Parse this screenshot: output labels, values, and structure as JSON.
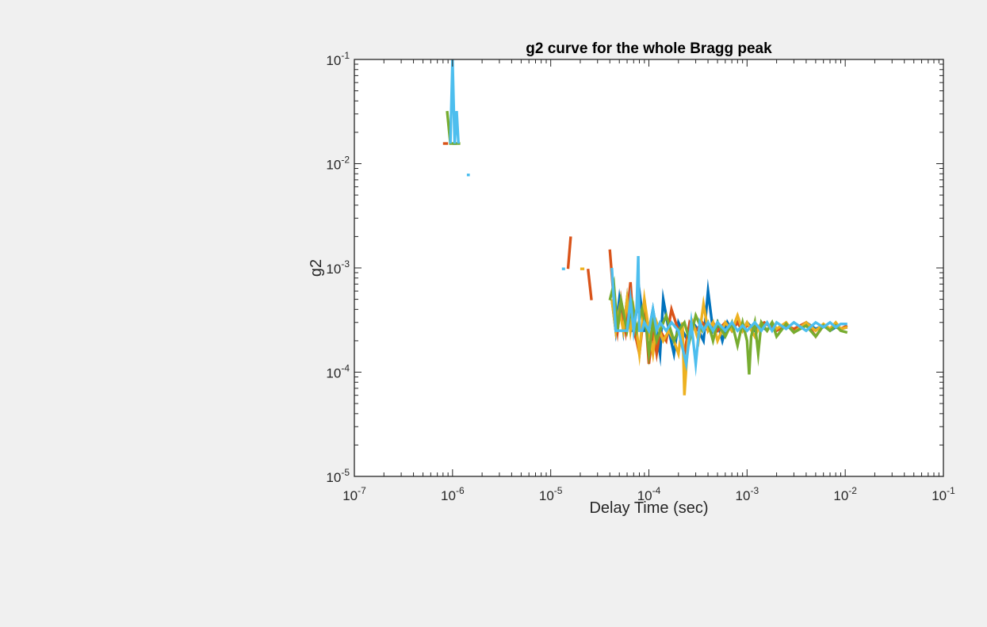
{
  "chart_data": {
    "type": "line",
    "title": "g2 curve for the whole Bragg peak",
    "xlabel": "Delay Time (sec)",
    "ylabel": "g2",
    "xscale": "log",
    "yscale": "log",
    "xlim": [
      1e-07,
      0.1
    ],
    "ylim": [
      1e-05,
      0.1
    ],
    "x_ticks": [
      {
        "base": "10",
        "exp": "-7"
      },
      {
        "base": "10",
        "exp": "-6"
      },
      {
        "base": "10",
        "exp": "-5"
      },
      {
        "base": "10",
        "exp": "-4"
      },
      {
        "base": "10",
        "exp": "-3"
      },
      {
        "base": "10",
        "exp": "-2"
      },
      {
        "base": "10",
        "exp": "-1"
      }
    ],
    "y_ticks": [
      {
        "base": "10",
        "exp": "-5"
      },
      {
        "base": "10",
        "exp": "-4"
      },
      {
        "base": "10",
        "exp": "-3"
      },
      {
        "base": "10",
        "exp": "-2"
      },
      {
        "base": "10",
        "exp": "-1"
      }
    ],
    "grid": false,
    "legend": "none",
    "series": [
      {
        "color": "#0072BD",
        "points": [
          [
            1e-06,
            0.0156
          ],
          [
            1.1e-06,
            0.0156
          ],
          null,
          [
            4.2e-05,
            0.0005
          ],
          [
            4.6e-05,
            0.00025
          ],
          [
            5e-05,
            0.0005
          ],
          [
            5.5e-05,
            0.00025
          ],
          [
            6e-05,
            0.0005
          ],
          [
            6.5e-05,
            0.00025
          ],
          [
            7e-05,
            0.00025
          ],
          [
            8e-05,
            0.0006
          ],
          [
            9e-05,
            0.00025
          ],
          [
            0.0001,
            0.00025
          ],
          [
            0.00011,
            0.0004
          ],
          [
            0.00012,
            0.00025
          ],
          [
            0.00013,
            0.00015
          ],
          [
            0.00014,
            0.0005
          ],
          [
            0.00016,
            0.00025
          ],
          [
            0.00018,
            0.00015
          ],
          [
            0.0002,
            0.0003
          ],
          [
            0.00022,
            0.00025
          ],
          [
            0.00025,
            0.0002
          ],
          [
            0.00028,
            0.0003
          ],
          [
            0.00032,
            0.00025
          ],
          [
            0.00036,
            0.0002
          ],
          [
            0.0004,
            0.0006
          ],
          [
            0.00045,
            0.00025
          ],
          [
            0.0005,
            0.0003
          ],
          [
            0.00056,
            0.0002
          ],
          [
            0.00063,
            0.0003
          ],
          [
            0.0007,
            0.00025
          ],
          [
            0.0008,
            0.0003
          ],
          [
            0.0009,
            0.00025
          ],
          [
            0.001,
            0.0003
          ],
          [
            0.0012,
            0.00025
          ],
          [
            0.0014,
            0.00028
          ],
          [
            0.0016,
            0.00025
          ],
          [
            0.0018,
            0.0003
          ],
          [
            0.002,
            0.00026
          ],
          [
            0.0025,
            0.00028
          ],
          [
            0.003,
            0.00025
          ],
          [
            0.004,
            0.0003
          ],
          [
            0.005,
            0.00026
          ],
          [
            0.006,
            0.00028
          ],
          [
            0.007,
            0.00025
          ],
          [
            0.008,
            0.00027
          ],
          [
            0.009,
            0.00026
          ],
          [
            0.0105,
            0.00027
          ]
        ]
      },
      {
        "color": "#D95319",
        "points": [
          [
            8e-07,
            0.0156
          ],
          [
            9e-07,
            0.0156
          ],
          null,
          [
            1.5e-05,
            0.00098
          ],
          [
            1.6e-05,
            0.002
          ],
          null,
          [
            2.4e-05,
            0.00098
          ],
          [
            2.6e-05,
            0.00049
          ],
          null,
          [
            4e-05,
            0.0015
          ],
          [
            4.4e-05,
            0.00049
          ],
          [
            4.8e-05,
            0.00025
          ],
          [
            5.2e-05,
            0.00049
          ],
          [
            5.8e-05,
            0.00025
          ],
          [
            6.5e-05,
            0.00073
          ],
          [
            7e-05,
            0.00025
          ],
          [
            7.5e-05,
            0.0002
          ],
          [
            8e-05,
            0.00015
          ],
          [
            8.5e-05,
            0.00025
          ],
          [
            9e-05,
            0.0005
          ],
          [
            0.0001,
            0.00012
          ],
          [
            0.00011,
            0.00025
          ],
          [
            0.00012,
            0.00015
          ],
          [
            0.00013,
            0.00025
          ],
          [
            0.00015,
            0.0002
          ],
          [
            0.00017,
            0.0004
          ],
          [
            0.0002,
            0.00025
          ],
          [
            0.00023,
            0.00015
          ],
          [
            0.00026,
            0.0003
          ],
          [
            0.0003,
            0.00025
          ],
          [
            0.00035,
            0.0003
          ],
          [
            0.0004,
            0.00025
          ],
          [
            0.00045,
            0.0003
          ],
          [
            0.0005,
            0.00025
          ],
          [
            0.0006,
            0.0003
          ],
          [
            0.0007,
            0.00025
          ],
          [
            0.0008,
            0.0003
          ],
          [
            0.0009,
            0.00025
          ],
          [
            0.001,
            0.00028
          ],
          [
            0.0012,
            0.00026
          ],
          [
            0.0015,
            0.0003
          ],
          [
            0.002,
            0.00025
          ],
          [
            0.0025,
            0.00028
          ],
          [
            0.003,
            0.00026
          ],
          [
            0.004,
            0.0003
          ],
          [
            0.005,
            0.00022
          ],
          [
            0.006,
            0.00028
          ],
          [
            0.007,
            0.00026
          ],
          [
            0.008,
            0.00029
          ],
          [
            0.009,
            0.00026
          ],
          [
            0.0105,
            0.00028
          ]
        ]
      },
      {
        "color": "#EDB120",
        "points": [
          [
            2e-05,
            0.00098
          ],
          [
            2.2e-05,
            0.00098
          ],
          null,
          [
            4.2e-05,
            0.0005
          ],
          [
            4.6e-05,
            0.00025
          ],
          [
            5e-05,
            0.0004
          ],
          [
            5.5e-05,
            0.00025
          ],
          [
            6e-05,
            0.0005
          ],
          [
            6.5e-05,
            0.00025
          ],
          [
            7e-05,
            0.0004
          ],
          [
            7.5e-05,
            0.00025
          ],
          [
            8e-05,
            0.00015
          ],
          [
            9e-05,
            0.0005
          ],
          [
            0.0001,
            0.00025
          ],
          [
            0.00011,
            0.00015
          ],
          [
            0.00012,
            0.0003
          ],
          [
            0.00014,
            0.0002
          ],
          [
            0.00016,
            0.00025
          ],
          [
            0.00018,
            0.0002
          ],
          [
            0.0002,
            0.00015
          ],
          [
            0.00022,
            0.0003
          ],
          [
            0.00023,
            6e-05
          ],
          [
            0.00025,
            0.0002
          ],
          [
            0.00028,
            0.0003
          ],
          [
            0.00032,
            0.0002
          ],
          [
            0.00036,
            0.00045
          ],
          [
            0.0004,
            0.00025
          ],
          [
            0.00045,
            0.0003
          ],
          [
            0.0005,
            0.0002
          ],
          [
            0.0006,
            0.0003
          ],
          [
            0.0007,
            0.00025
          ],
          [
            0.0008,
            0.00035
          ],
          [
            0.0009,
            0.00025
          ],
          [
            0.001,
            0.0003
          ],
          [
            0.0012,
            0.00022
          ],
          [
            0.0014,
            0.0003
          ],
          [
            0.0016,
            0.00025
          ],
          [
            0.0018,
            0.0003
          ],
          [
            0.002,
            0.00026
          ],
          [
            0.0025,
            0.0003
          ],
          [
            0.003,
            0.00024
          ],
          [
            0.004,
            0.0003
          ],
          [
            0.005,
            0.00025
          ],
          [
            0.006,
            0.00029
          ],
          [
            0.007,
            0.00026
          ],
          [
            0.008,
            0.0003
          ],
          [
            0.009,
            0.00026
          ],
          [
            0.0105,
            0.00027
          ]
        ]
      },
      {
        "color": "#77AC30",
        "points": [
          [
            8.8e-07,
            0.032
          ],
          [
            9.5e-07,
            0.0156
          ],
          [
            1.1e-06,
            0.0156
          ],
          [
            1.2e-06,
            0.0156
          ],
          null,
          [
            4e-05,
            0.00049
          ],
          [
            4.4e-05,
            0.0007
          ],
          [
            4.8e-05,
            0.00025
          ],
          [
            5.2e-05,
            0.00049
          ],
          [
            6e-05,
            0.00025
          ],
          [
            6.8e-05,
            0.00045
          ],
          [
            7.5e-05,
            0.00025
          ],
          [
            8.5e-05,
            0.0004
          ],
          [
            9.5e-05,
            0.00025
          ],
          [
            0.0001,
            0.00015
          ],
          [
            0.00011,
            0.0003
          ],
          [
            0.00012,
            0.0002
          ],
          [
            0.00013,
            0.00025
          ],
          [
            0.00015,
            0.00035
          ],
          [
            0.00018,
            0.0002
          ],
          [
            0.0002,
            0.00025
          ],
          [
            0.00023,
            0.0003
          ],
          [
            0.00026,
            0.0002
          ],
          [
            0.0003,
            0.00035
          ],
          [
            0.00035,
            0.00025
          ],
          [
            0.0004,
            0.0003
          ],
          [
            0.00045,
            0.0002
          ],
          [
            0.0005,
            0.0003
          ],
          [
            0.0006,
            0.00022
          ],
          [
            0.0007,
            0.0003
          ],
          [
            0.0008,
            0.00018
          ],
          [
            0.0009,
            0.0003
          ],
          [
            0.001,
            0.0002
          ],
          [
            0.00105,
            9.5e-05
          ],
          [
            0.0011,
            0.00022
          ],
          [
            0.0012,
            0.0003
          ],
          [
            0.0013,
            0.00015
          ],
          [
            0.0014,
            0.0003
          ],
          [
            0.0016,
            0.00025
          ],
          [
            0.0018,
            0.0003
          ],
          [
            0.002,
            0.00022
          ],
          [
            0.0025,
            0.00029
          ],
          [
            0.003,
            0.00024
          ],
          [
            0.004,
            0.00028
          ],
          [
            0.005,
            0.00022
          ],
          [
            0.006,
            0.00028
          ],
          [
            0.007,
            0.00025
          ],
          [
            0.008,
            0.00028
          ],
          [
            0.009,
            0.00025
          ],
          [
            0.0105,
            0.00024
          ]
        ]
      },
      {
        "color": "#4DBEEE",
        "points": [
          [
            9.5e-07,
            0.0156
          ],
          [
            1e-06,
            0.1
          ],
          [
            1.05e-06,
            0.0156
          ],
          [
            1.1e-06,
            0.032
          ],
          [
            1.15e-06,
            0.0156
          ],
          null,
          [
            1.4e-06,
            0.0078
          ],
          [
            1.5e-06,
            0.0078
          ],
          null,
          [
            1.3e-05,
            0.00098
          ],
          [
            1.4e-05,
            0.00098
          ],
          null,
          [
            4.2e-05,
            0.001
          ],
          [
            4.6e-05,
            0.00025
          ],
          [
            5e-05,
            0.00025
          ],
          [
            5.5e-05,
            0.00025
          ],
          [
            6e-05,
            0.00025
          ],
          [
            6.5e-05,
            0.0005
          ],
          [
            7e-05,
            0.00025
          ],
          [
            7.5e-05,
            0.0004
          ],
          [
            7.8e-05,
            0.0013
          ],
          [
            8e-05,
            0.00025
          ],
          [
            8.5e-05,
            0.00025
          ],
          [
            9e-05,
            0.0003
          ],
          [
            0.0001,
            0.00025
          ],
          [
            0.00011,
            0.0004
          ],
          [
            0.00012,
            0.00025
          ],
          [
            0.00013,
            0.0003
          ],
          [
            0.00015,
            0.00025
          ],
          [
            0.00017,
            0.0003
          ],
          [
            0.0002,
            0.00025
          ],
          [
            0.00024,
            0.00012
          ],
          [
            0.00027,
            0.0003
          ],
          [
            0.0003,
            0.00012
          ],
          [
            0.00033,
            0.0003
          ],
          [
            0.00036,
            0.00025
          ],
          [
            0.0004,
            0.0003
          ],
          [
            0.00045,
            0.00025
          ],
          [
            0.0005,
            0.0003
          ],
          [
            0.0006,
            0.00025
          ],
          [
            0.0007,
            0.0003
          ],
          [
            0.0008,
            0.00025
          ],
          [
            0.0009,
            0.00028
          ],
          [
            0.001,
            0.00025
          ],
          [
            0.0012,
            0.0003
          ],
          [
            0.0014,
            0.00025
          ],
          [
            0.0016,
            0.0003
          ],
          [
            0.0018,
            0.00025
          ],
          [
            0.002,
            0.0003
          ],
          [
            0.0025,
            0.00026
          ],
          [
            0.003,
            0.0003
          ],
          [
            0.004,
            0.00025
          ],
          [
            0.005,
            0.0003
          ],
          [
            0.006,
            0.00027
          ],
          [
            0.007,
            0.0003
          ],
          [
            0.008,
            0.00027
          ],
          [
            0.009,
            0.00029
          ],
          [
            0.0105,
            0.00029
          ]
        ]
      }
    ]
  }
}
